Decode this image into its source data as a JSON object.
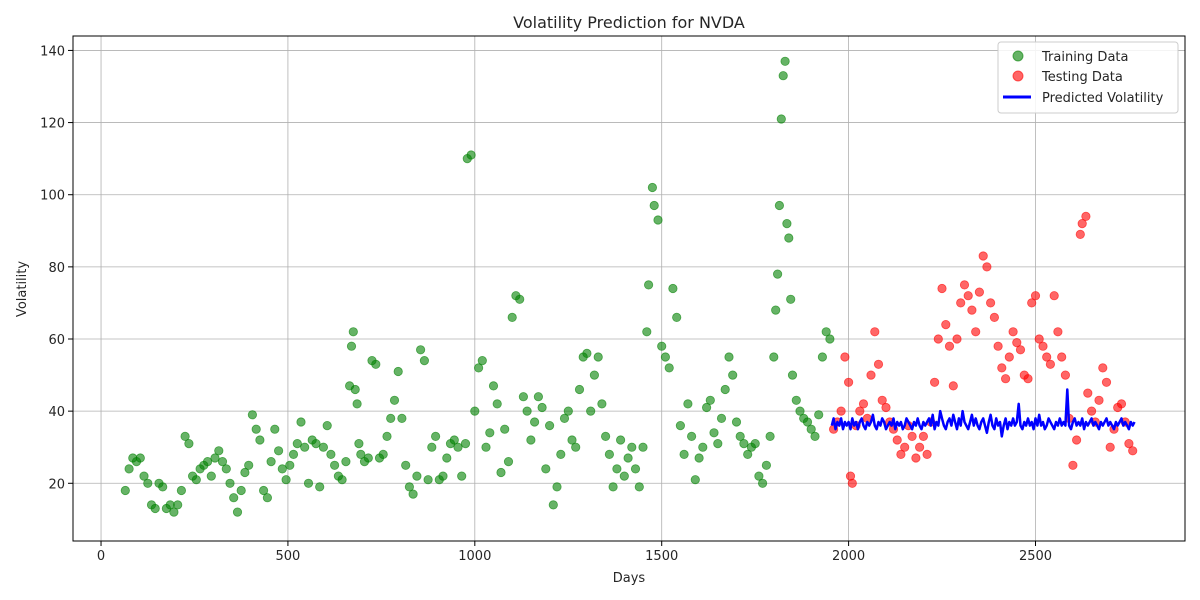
{
  "chart_data": {
    "type": "scatter",
    "title": "Volatility Prediction for NVDA",
    "xlabel": "Days",
    "ylabel": "Volatility",
    "xlim": [
      -75,
      2900
    ],
    "ylim": [
      4,
      144
    ],
    "xticks": [
      0,
      500,
      1000,
      1500,
      2000,
      2500
    ],
    "yticks": [
      20,
      40,
      60,
      80,
      100,
      120,
      140
    ],
    "grid": true,
    "legend_position": "top-right",
    "series": [
      {
        "name": "Training Data",
        "kind": "scatter",
        "color": "#008000",
        "opacity": 0.6,
        "points": [
          [
            65,
            18
          ],
          [
            75,
            24
          ],
          [
            85,
            27
          ],
          [
            95,
            26
          ],
          [
            105,
            27
          ],
          [
            115,
            22
          ],
          [
            125,
            20
          ],
          [
            135,
            14
          ],
          [
            145,
            13
          ],
          [
            155,
            20
          ],
          [
            165,
            19
          ],
          [
            175,
            13
          ],
          [
            185,
            14
          ],
          [
            195,
            12
          ],
          [
            205,
            14
          ],
          [
            215,
            18
          ],
          [
            225,
            33
          ],
          [
            235,
            31
          ],
          [
            245,
            22
          ],
          [
            255,
            21
          ],
          [
            265,
            24
          ],
          [
            275,
            25
          ],
          [
            285,
            26
          ],
          [
            295,
            22
          ],
          [
            305,
            27
          ],
          [
            315,
            29
          ],
          [
            325,
            26
          ],
          [
            335,
            24
          ],
          [
            345,
            20
          ],
          [
            355,
            16
          ],
          [
            365,
            12
          ],
          [
            375,
            18
          ],
          [
            385,
            23
          ],
          [
            395,
            25
          ],
          [
            405,
            39
          ],
          [
            415,
            35
          ],
          [
            425,
            32
          ],
          [
            435,
            18
          ],
          [
            445,
            16
          ],
          [
            455,
            26
          ],
          [
            465,
            35
          ],
          [
            475,
            29
          ],
          [
            485,
            24
          ],
          [
            495,
            21
          ],
          [
            505,
            25
          ],
          [
            515,
            28
          ],
          [
            525,
            31
          ],
          [
            535,
            37
          ],
          [
            545,
            30
          ],
          [
            555,
            20
          ],
          [
            565,
            32
          ],
          [
            575,
            31
          ],
          [
            585,
            19
          ],
          [
            595,
            30
          ],
          [
            605,
            36
          ],
          [
            615,
            28
          ],
          [
            625,
            25
          ],
          [
            635,
            22
          ],
          [
            645,
            21
          ],
          [
            655,
            26
          ],
          [
            665,
            47
          ],
          [
            670,
            58
          ],
          [
            675,
            62
          ],
          [
            680,
            46
          ],
          [
            685,
            42
          ],
          [
            690,
            31
          ],
          [
            695,
            28
          ],
          [
            705,
            26
          ],
          [
            715,
            27
          ],
          [
            725,
            54
          ],
          [
            735,
            53
          ],
          [
            745,
            27
          ],
          [
            755,
            28
          ],
          [
            765,
            33
          ],
          [
            775,
            38
          ],
          [
            785,
            43
          ],
          [
            795,
            51
          ],
          [
            805,
            38
          ],
          [
            815,
            25
          ],
          [
            825,
            19
          ],
          [
            835,
            17
          ],
          [
            845,
            22
          ],
          [
            855,
            57
          ],
          [
            865,
            54
          ],
          [
            875,
            21
          ],
          [
            885,
            30
          ],
          [
            895,
            33
          ],
          [
            905,
            21
          ],
          [
            915,
            22
          ],
          [
            925,
            27
          ],
          [
            935,
            31
          ],
          [
            945,
            32
          ],
          [
            955,
            30
          ],
          [
            965,
            22
          ],
          [
            975,
            31
          ],
          [
            980,
            110
          ],
          [
            990,
            111
          ],
          [
            1000,
            40
          ],
          [
            1010,
            52
          ],
          [
            1020,
            54
          ],
          [
            1030,
            30
          ],
          [
            1040,
            34
          ],
          [
            1050,
            47
          ],
          [
            1060,
            42
          ],
          [
            1070,
            23
          ],
          [
            1080,
            35
          ],
          [
            1090,
            26
          ],
          [
            1100,
            66
          ],
          [
            1110,
            72
          ],
          [
            1120,
            71
          ],
          [
            1130,
            44
          ],
          [
            1140,
            40
          ],
          [
            1150,
            32
          ],
          [
            1160,
            37
          ],
          [
            1170,
            44
          ],
          [
            1180,
            41
          ],
          [
            1190,
            24
          ],
          [
            1200,
            36
          ],
          [
            1210,
            14
          ],
          [
            1220,
            19
          ],
          [
            1230,
            28
          ],
          [
            1240,
            38
          ],
          [
            1250,
            40
          ],
          [
            1260,
            32
          ],
          [
            1270,
            30
          ],
          [
            1280,
            46
          ],
          [
            1290,
            55
          ],
          [
            1300,
            56
          ],
          [
            1310,
            40
          ],
          [
            1320,
            50
          ],
          [
            1330,
            55
          ],
          [
            1340,
            42
          ],
          [
            1350,
            33
          ],
          [
            1360,
            28
          ],
          [
            1370,
            19
          ],
          [
            1380,
            24
          ],
          [
            1390,
            32
          ],
          [
            1400,
            22
          ],
          [
            1410,
            27
          ],
          [
            1420,
            30
          ],
          [
            1430,
            24
          ],
          [
            1440,
            19
          ],
          [
            1450,
            30
          ],
          [
            1460,
            62
          ],
          [
            1465,
            75
          ],
          [
            1475,
            102
          ],
          [
            1480,
            97
          ],
          [
            1490,
            93
          ],
          [
            1500,
            58
          ],
          [
            1510,
            55
          ],
          [
            1520,
            52
          ],
          [
            1530,
            74
          ],
          [
            1540,
            66
          ],
          [
            1550,
            36
          ],
          [
            1560,
            28
          ],
          [
            1570,
            42
          ],
          [
            1580,
            33
          ],
          [
            1590,
            21
          ],
          [
            1600,
            27
          ],
          [
            1610,
            30
          ],
          [
            1620,
            41
          ],
          [
            1630,
            43
          ],
          [
            1640,
            34
          ],
          [
            1650,
            31
          ],
          [
            1660,
            38
          ],
          [
            1670,
            46
          ],
          [
            1680,
            55
          ],
          [
            1690,
            50
          ],
          [
            1700,
            37
          ],
          [
            1710,
            33
          ],
          [
            1720,
            31
          ],
          [
            1730,
            28
          ],
          [
            1740,
            30
          ],
          [
            1750,
            31
          ],
          [
            1760,
            22
          ],
          [
            1770,
            20
          ],
          [
            1780,
            25
          ],
          [
            1790,
            33
          ],
          [
            1800,
            55
          ],
          [
            1805,
            68
          ],
          [
            1810,
            78
          ],
          [
            1815,
            97
          ],
          [
            1820,
            121
          ],
          [
            1825,
            133
          ],
          [
            1830,
            137
          ],
          [
            1835,
            92
          ],
          [
            1840,
            88
          ],
          [
            1845,
            71
          ],
          [
            1850,
            50
          ],
          [
            1860,
            43
          ],
          [
            1870,
            40
          ],
          [
            1880,
            38
          ],
          [
            1890,
            37
          ],
          [
            1900,
            35
          ],
          [
            1910,
            33
          ],
          [
            1920,
            39
          ],
          [
            1930,
            55
          ],
          [
            1940,
            62
          ],
          [
            1950,
            60
          ]
        ]
      },
      {
        "name": "Testing Data",
        "kind": "scatter",
        "color": "#ff0000",
        "opacity": 0.6,
        "points": [
          [
            1960,
            35
          ],
          [
            1970,
            37
          ],
          [
            1980,
            40
          ],
          [
            1990,
            55
          ],
          [
            2000,
            48
          ],
          [
            2005,
            22
          ],
          [
            2010,
            20
          ],
          [
            2020,
            36
          ],
          [
            2030,
            40
          ],
          [
            2040,
            42
          ],
          [
            2050,
            38
          ],
          [
            2060,
            50
          ],
          [
            2070,
            62
          ],
          [
            2080,
            53
          ],
          [
            2090,
            43
          ],
          [
            2100,
            41
          ],
          [
            2110,
            37
          ],
          [
            2120,
            35
          ],
          [
            2130,
            32
          ],
          [
            2140,
            28
          ],
          [
            2150,
            30
          ],
          [
            2160,
            36
          ],
          [
            2170,
            33
          ],
          [
            2180,
            27
          ],
          [
            2190,
            30
          ],
          [
            2200,
            33
          ],
          [
            2210,
            28
          ],
          [
            2220,
            37
          ],
          [
            2230,
            48
          ],
          [
            2240,
            60
          ],
          [
            2250,
            74
          ],
          [
            2260,
            64
          ],
          [
            2270,
            58
          ],
          [
            2280,
            47
          ],
          [
            2290,
            60
          ],
          [
            2300,
            70
          ],
          [
            2310,
            75
          ],
          [
            2320,
            72
          ],
          [
            2330,
            68
          ],
          [
            2340,
            62
          ],
          [
            2350,
            73
          ],
          [
            2360,
            83
          ],
          [
            2370,
            80
          ],
          [
            2380,
            70
          ],
          [
            2390,
            66
          ],
          [
            2400,
            58
          ],
          [
            2410,
            52
          ],
          [
            2420,
            49
          ],
          [
            2430,
            55
          ],
          [
            2440,
            62
          ],
          [
            2450,
            59
          ],
          [
            2460,
            57
          ],
          [
            2470,
            50
          ],
          [
            2480,
            49
          ],
          [
            2490,
            70
          ],
          [
            2500,
            72
          ],
          [
            2510,
            60
          ],
          [
            2520,
            58
          ],
          [
            2530,
            55
          ],
          [
            2540,
            53
          ],
          [
            2550,
            72
          ],
          [
            2560,
            62
          ],
          [
            2570,
            55
          ],
          [
            2580,
            50
          ],
          [
            2590,
            38
          ],
          [
            2600,
            25
          ],
          [
            2610,
            32
          ],
          [
            2620,
            89
          ],
          [
            2625,
            92
          ],
          [
            2635,
            94
          ],
          [
            2640,
            45
          ],
          [
            2650,
            40
          ],
          [
            2660,
            37
          ],
          [
            2670,
            43
          ],
          [
            2680,
            52
          ],
          [
            2690,
            48
          ],
          [
            2700,
            30
          ],
          [
            2710,
            35
          ],
          [
            2720,
            41
          ],
          [
            2730,
            42
          ],
          [
            2740,
            37
          ],
          [
            2750,
            31
          ],
          [
            2760,
            29
          ]
        ]
      },
      {
        "name": "Predicted Volatility",
        "kind": "line",
        "color": "#0000ff",
        "x_start": 1955,
        "x_step": 5,
        "y": [
          36,
          38,
          35,
          37,
          36,
          38,
          35,
          37,
          36,
          37,
          35,
          38,
          36,
          37,
          35,
          37,
          38,
          36,
          35,
          37,
          36,
          37,
          39,
          36,
          35,
          37,
          36,
          38,
          37,
          35,
          36,
          37,
          36,
          38,
          35,
          37,
          36,
          37,
          35,
          36,
          38,
          37,
          36,
          35,
          37,
          36,
          38,
          36,
          35,
          37,
          36,
          37,
          38,
          36,
          39,
          35,
          37,
          36,
          40,
          38,
          36,
          35,
          37,
          38,
          36,
          39,
          37,
          35,
          38,
          36,
          40,
          37,
          36,
          35,
          37,
          39,
          36,
          38,
          36,
          35,
          37,
          38,
          36,
          34,
          37,
          39,
          36,
          35,
          38,
          36,
          37,
          33,
          36,
          38,
          35,
          37,
          36,
          38,
          36,
          37,
          42,
          36,
          35,
          37,
          36,
          38,
          36,
          37,
          35,
          38,
          36,
          39,
          36,
          37,
          35,
          36,
          38,
          37,
          36,
          35,
          37,
          36,
          38,
          36,
          37,
          36,
          46,
          36,
          35,
          37,
          38,
          36,
          37,
          36,
          38,
          35,
          37,
          36,
          37,
          38,
          36,
          37,
          36,
          35,
          37,
          36,
          37,
          38,
          36,
          37,
          36,
          35,
          37,
          36,
          37,
          38,
          36,
          37,
          36,
          35,
          37,
          36,
          37
        ]
      }
    ]
  }
}
